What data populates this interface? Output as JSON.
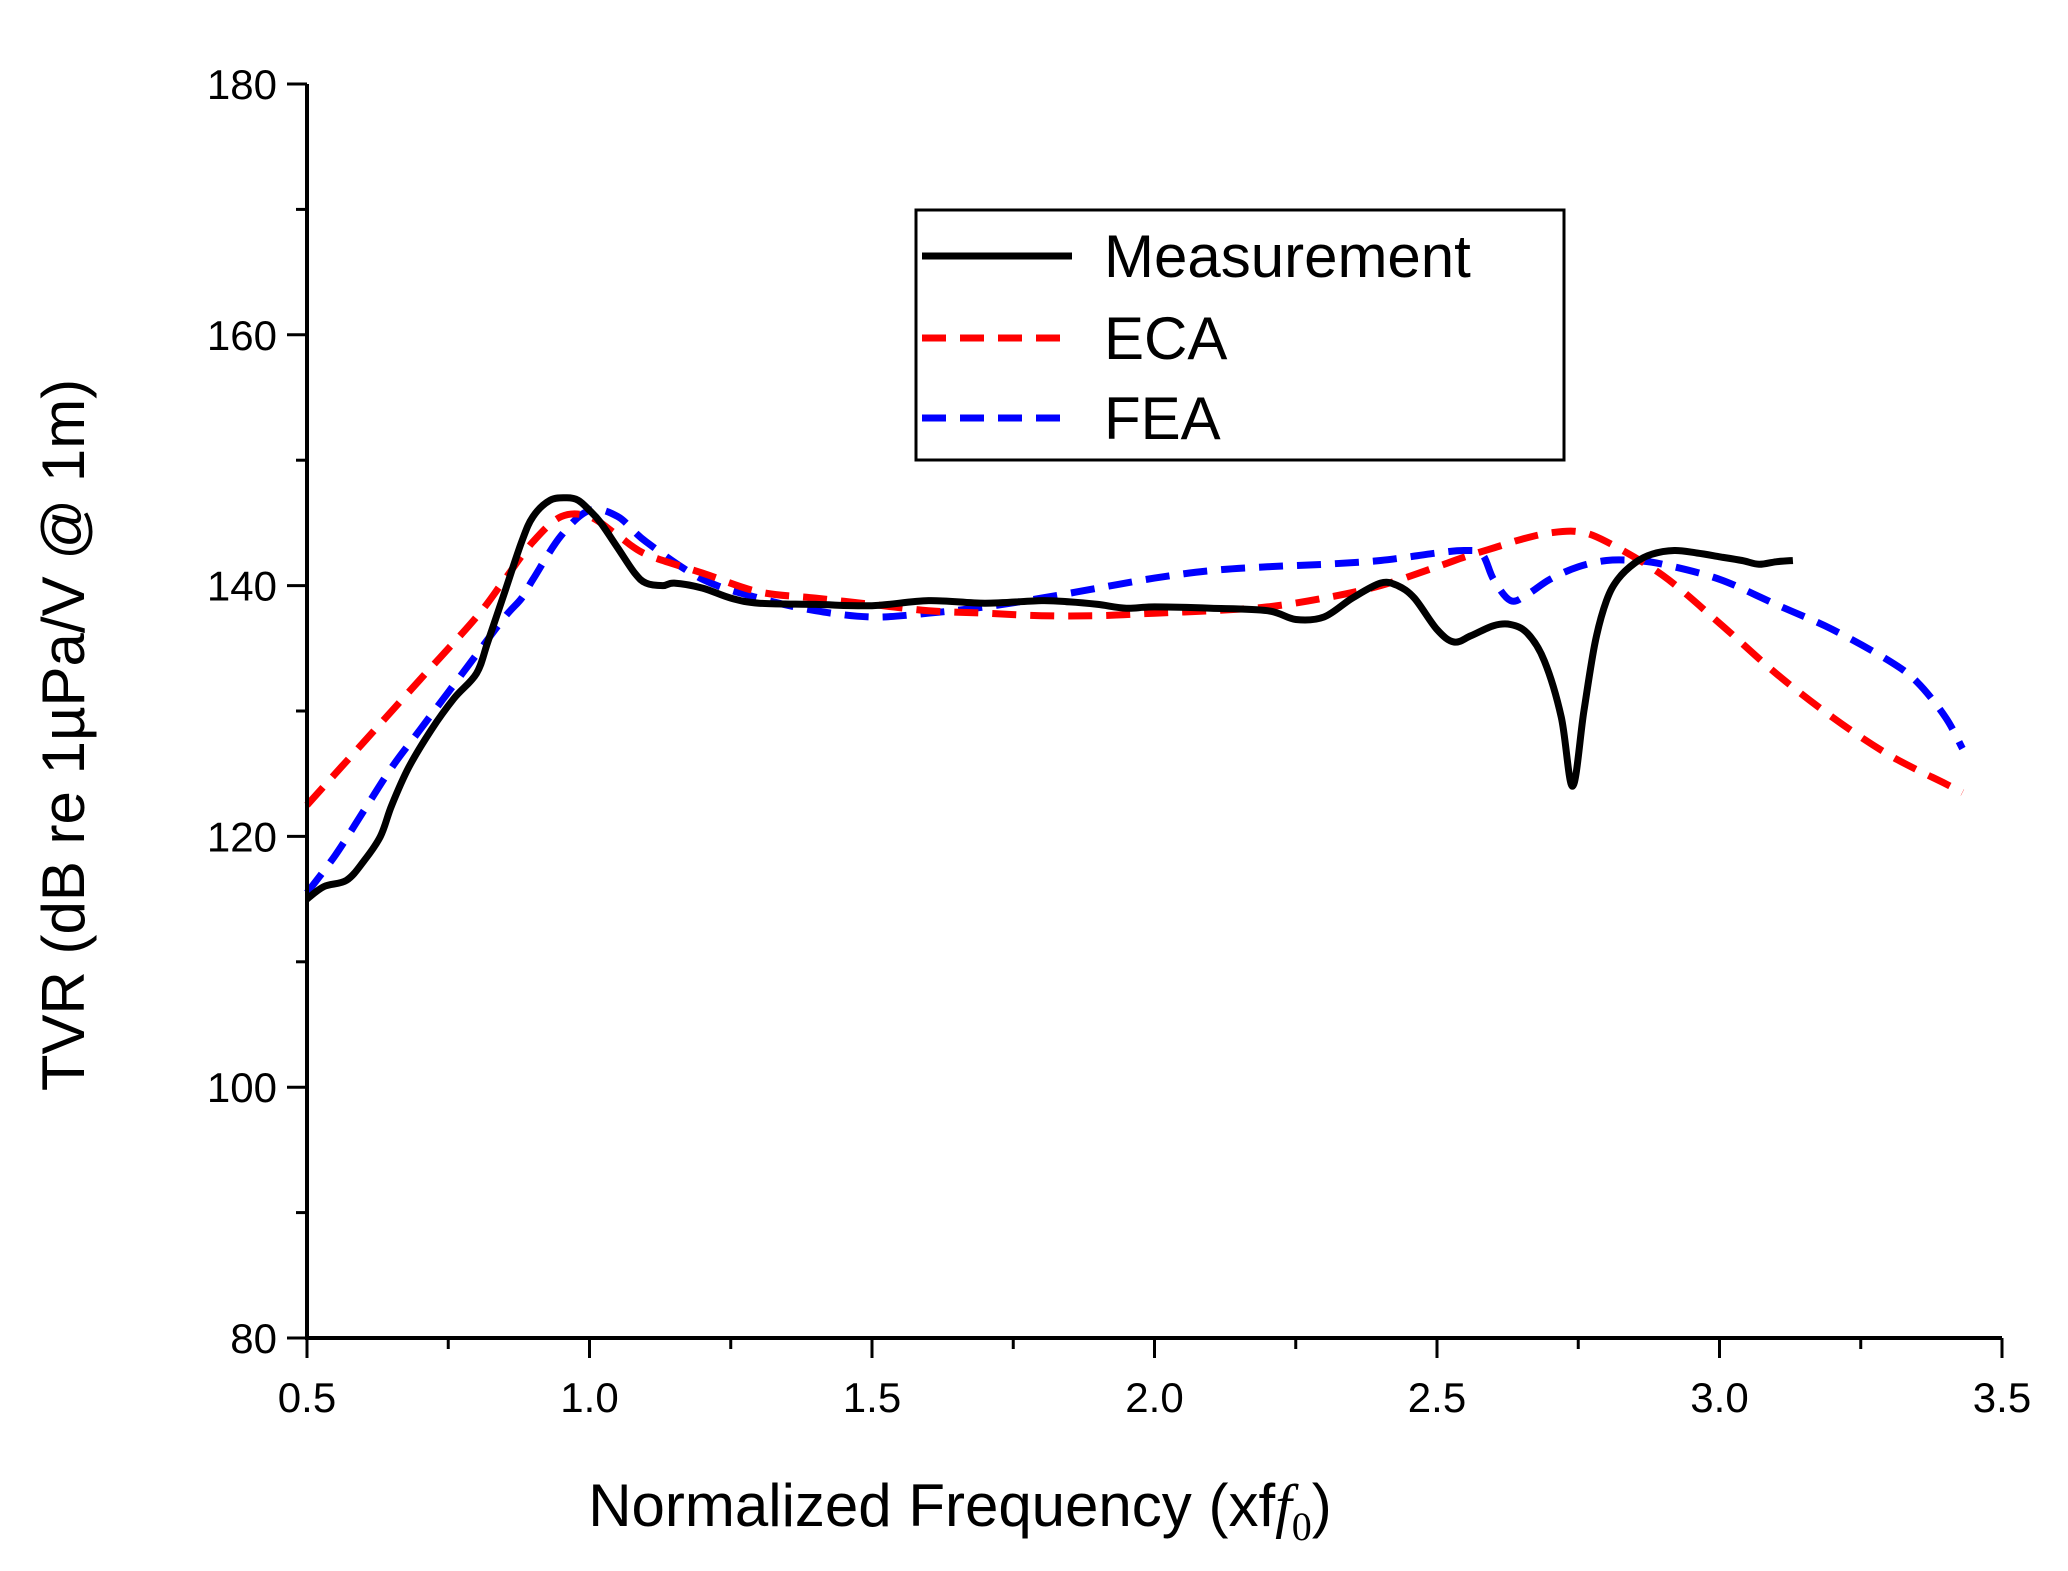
{
  "chart_data": {
    "type": "line",
    "title": "",
    "xlabel": "Normalized Frequency (xf",
    "xlabel_italic": "f",
    "xlabel_subscript": "0",
    "xlabel_suffix": ")",
    "ylabel": "TVR (dB re 1µPa/V @ 1m)",
    "xlim": [
      0.5,
      3.5
    ],
    "ylim": [
      80,
      180
    ],
    "xticks": [
      0.5,
      1.0,
      1.5,
      2.0,
      2.5,
      3.0,
      3.5
    ],
    "xtick_labels": [
      "0.5",
      "1.0",
      "1.5",
      "2.0",
      "2.5",
      "3.0",
      "3.5"
    ],
    "yticks": [
      80,
      100,
      120,
      140,
      160,
      180
    ],
    "ytick_labels": [
      "80",
      "100",
      "120",
      "140",
      "160",
      "180"
    ],
    "grid": false,
    "legend_position": "top-center",
    "series": [
      {
        "name": "Measurement",
        "color": "#000000",
        "style": "solid",
        "x": [
          0.5,
          0.53,
          0.57,
          0.6,
          0.63,
          0.65,
          0.68,
          0.72,
          0.76,
          0.8,
          0.82,
          0.85,
          0.88,
          0.9,
          0.93,
          0.96,
          0.98,
          1.0,
          1.02,
          1.05,
          1.08,
          1.1,
          1.13,
          1.15,
          1.2,
          1.25,
          1.3,
          1.4,
          1.5,
          1.6,
          1.7,
          1.8,
          1.85,
          1.9,
          1.95,
          2.0,
          2.1,
          2.2,
          2.25,
          2.3,
          2.35,
          2.4,
          2.43,
          2.46,
          2.5,
          2.53,
          2.56,
          2.6,
          2.63,
          2.66,
          2.69,
          2.72,
          2.74,
          2.76,
          2.78,
          2.8,
          2.82,
          2.85,
          2.88,
          2.92,
          2.96,
          3.0,
          3.04,
          3.07,
          3.1,
          3.13
        ],
        "values": [
          115,
          116,
          116.5,
          118,
          120,
          122.5,
          125.5,
          128.5,
          131,
          133,
          135.5,
          139.5,
          143.5,
          145.5,
          146.8,
          147,
          146.8,
          146,
          145,
          143,
          141,
          140.2,
          140,
          140.2,
          139.8,
          139,
          138.6,
          138.5,
          138.4,
          138.8,
          138.6,
          138.8,
          138.7,
          138.5,
          138.2,
          138.3,
          138.2,
          138,
          137.3,
          137.5,
          139,
          140.2,
          140,
          139,
          136.5,
          135.5,
          136,
          136.8,
          136.9,
          136.2,
          134,
          129.5,
          124,
          130,
          135.5,
          138.8,
          140.5,
          141.8,
          142.5,
          142.8,
          142.6,
          142.3,
          142,
          141.7,
          141.9,
          142
        ]
      },
      {
        "name": "ECA",
        "color": "#ff0000",
        "style": "dashed",
        "x": [
          0.5,
          0.6,
          0.7,
          0.8,
          0.85,
          0.9,
          0.95,
          1.0,
          1.05,
          1.1,
          1.2,
          1.3,
          1.4,
          1.5,
          1.6,
          1.7,
          1.8,
          1.9,
          2.0,
          2.1,
          2.2,
          2.3,
          2.4,
          2.5,
          2.55,
          2.6,
          2.65,
          2.7,
          2.75,
          2.8,
          2.9,
          3.0,
          3.1,
          3.2,
          3.3,
          3.4,
          3.43
        ],
        "values": [
          122.5,
          127.5,
          132.5,
          137.5,
          140.5,
          143.5,
          145.5,
          145.5,
          144,
          142.5,
          141,
          139.5,
          139,
          138.5,
          138,
          137.8,
          137.6,
          137.6,
          137.8,
          138,
          138.3,
          139,
          140,
          141.5,
          142.3,
          143,
          143.7,
          144.2,
          144.3,
          143.5,
          140.8,
          137,
          133,
          129.5,
          126.5,
          124.2,
          123.5
        ]
      },
      {
        "name": "FEA",
        "color": "#0000ff",
        "style": "dashed",
        "x": [
          0.5,
          0.55,
          0.6,
          0.65,
          0.7,
          0.75,
          0.8,
          0.85,
          0.88,
          0.9,
          0.95,
          1.0,
          1.05,
          1.1,
          1.2,
          1.3,
          1.4,
          1.5,
          1.6,
          1.7,
          1.8,
          1.9,
          2.0,
          2.1,
          2.2,
          2.3,
          2.4,
          2.5,
          2.55,
          2.58,
          2.6,
          2.63,
          2.66,
          2.7,
          2.75,
          2.8,
          2.85,
          2.9,
          3.0,
          3.1,
          3.2,
          3.3,
          3.35,
          3.4,
          3.43
        ],
        "values": [
          115.5,
          118.5,
          122,
          125.5,
          128.5,
          131.5,
          134.5,
          137.5,
          139,
          140.5,
          144,
          146,
          145.5,
          143.5,
          140.5,
          139,
          138,
          137.5,
          137.8,
          138.3,
          139,
          139.8,
          140.6,
          141.2,
          141.5,
          141.7,
          142,
          142.6,
          142.8,
          142.5,
          140.5,
          138.8,
          139.3,
          140.5,
          141.5,
          142,
          142,
          141.7,
          140.5,
          138.5,
          136.5,
          134,
          132.3,
          129.5,
          127
        ]
      }
    ]
  }
}
